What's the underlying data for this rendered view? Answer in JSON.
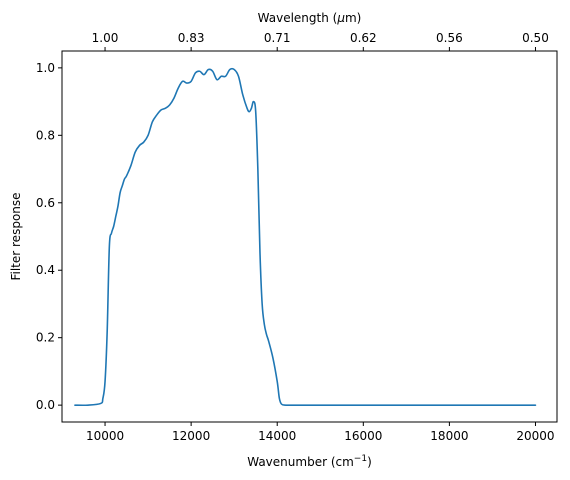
{
  "chart_data": {
    "type": "line",
    "title": "",
    "xlabel": "Wavenumber (cm",
    "xlabel_sup": "−1",
    "xlabel_close": ")",
    "ylabel": "Filter response",
    "top_xlabel_pre": "Wavelength (",
    "top_xlabel_mu": "μ",
    "top_xlabel_post": "m)",
    "xlim": [
      9000,
      20500
    ],
    "ylim": [
      -0.05,
      1.05
    ],
    "x_ticks": [
      10000,
      12000,
      14000,
      16000,
      18000,
      20000
    ],
    "x_tick_labels": [
      "10000",
      "12000",
      "14000",
      "16000",
      "18000",
      "20000"
    ],
    "y_ticks": [
      0.0,
      0.2,
      0.4,
      0.6,
      0.8,
      1.0
    ],
    "y_tick_labels": [
      "0.0",
      "0.2",
      "0.4",
      "0.6",
      "0.8",
      "1.0"
    ],
    "top_x_ticks": [
      10000,
      12000,
      14000,
      16000,
      18000,
      20000
    ],
    "top_x_tick_labels": [
      "1.00",
      "0.83",
      "0.71",
      "0.62",
      "0.56",
      "0.50"
    ],
    "grid": false,
    "colors": {
      "series": "#1f77b4"
    },
    "series": [
      {
        "x": [
          9300,
          9600,
          9900,
          9950,
          10000,
          10050,
          10100,
          10150,
          10200,
          10250,
          10300,
          10350,
          10400,
          10450,
          10500,
          10600,
          10700,
          10800,
          10900,
          11000,
          11100,
          11200,
          11300,
          11400,
          11500,
          11600,
          11700,
          11800,
          11900,
          12000,
          12100,
          12200,
          12300,
          12400,
          12500,
          12600,
          12700,
          12800,
          12900,
          13000,
          13100,
          13200,
          13300,
          13350,
          13400,
          13450,
          13500,
          13550,
          13600,
          13650,
          13700,
          13750,
          13800,
          13900,
          14000,
          14050,
          14100,
          14200,
          14500,
          15000,
          16000,
          17000,
          18000,
          19000,
          20000
        ],
        "y": [
          0.0,
          0.0,
          0.005,
          0.02,
          0.07,
          0.22,
          0.47,
          0.51,
          0.53,
          0.56,
          0.59,
          0.63,
          0.65,
          0.67,
          0.68,
          0.71,
          0.75,
          0.77,
          0.78,
          0.8,
          0.84,
          0.86,
          0.875,
          0.88,
          0.89,
          0.91,
          0.94,
          0.96,
          0.955,
          0.96,
          0.985,
          0.99,
          0.98,
          0.995,
          0.99,
          0.965,
          0.975,
          0.975,
          0.995,
          0.995,
          0.975,
          0.92,
          0.88,
          0.87,
          0.88,
          0.9,
          0.87,
          0.7,
          0.45,
          0.3,
          0.24,
          0.21,
          0.19,
          0.14,
          0.07,
          0.02,
          0.003,
          0.0,
          0.0,
          0.0,
          0.0,
          0.0,
          0.0,
          0.0,
          0.0
        ]
      }
    ]
  }
}
